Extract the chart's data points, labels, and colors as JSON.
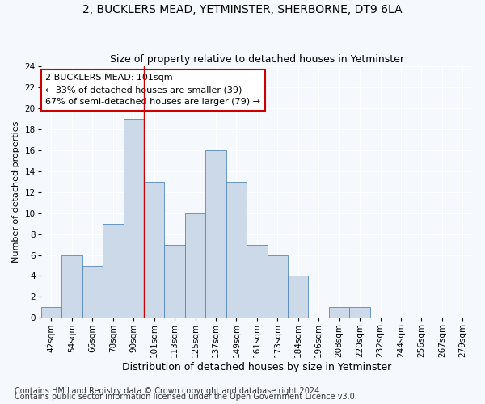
{
  "title": "2, BUCKLERS MEAD, YETMINSTER, SHERBORNE, DT9 6LA",
  "subtitle": "Size of property relative to detached houses in Yetminster",
  "xlabel": "Distribution of detached houses by size in Yetminster",
  "ylabel": "Number of detached properties",
  "bins": [
    "42sqm",
    "54sqm",
    "66sqm",
    "78sqm",
    "90sqm",
    "101sqm",
    "113sqm",
    "125sqm",
    "137sqm",
    "149sqm",
    "161sqm",
    "173sqm",
    "184sqm",
    "196sqm",
    "208sqm",
    "220sqm",
    "232sqm",
    "244sqm",
    "256sqm",
    "267sqm",
    "279sqm"
  ],
  "values": [
    1,
    6,
    5,
    9,
    19,
    13,
    7,
    10,
    16,
    13,
    7,
    6,
    4,
    0,
    1,
    1,
    0,
    0,
    0,
    0,
    0
  ],
  "bar_color": "#ccd9e8",
  "bar_edge_color": "#5588bb",
  "vline_color": "#cc0000",
  "vline_bin_index": 5,
  "annotation_text": "2 BUCKLERS MEAD: 101sqm\n← 33% of detached houses are smaller (39)\n67% of semi-detached houses are larger (79) →",
  "annotation_box_color": "white",
  "annotation_box_edge": "#cc0000",
  "ylim": [
    0,
    24
  ],
  "yticks": [
    0,
    2,
    4,
    6,
    8,
    10,
    12,
    14,
    16,
    18,
    20,
    22,
    24
  ],
  "footer1": "Contains HM Land Registry data © Crown copyright and database right 2024.",
  "footer2": "Contains public sector information licensed under the Open Government Licence v3.0.",
  "background_color": "#f5f8fc",
  "grid_color": "#ffffff",
  "title_fontsize": 10,
  "subtitle_fontsize": 9,
  "ylabel_fontsize": 8,
  "xlabel_fontsize": 9,
  "tick_fontsize": 7.5,
  "annotation_fontsize": 8,
  "footer_fontsize": 7
}
